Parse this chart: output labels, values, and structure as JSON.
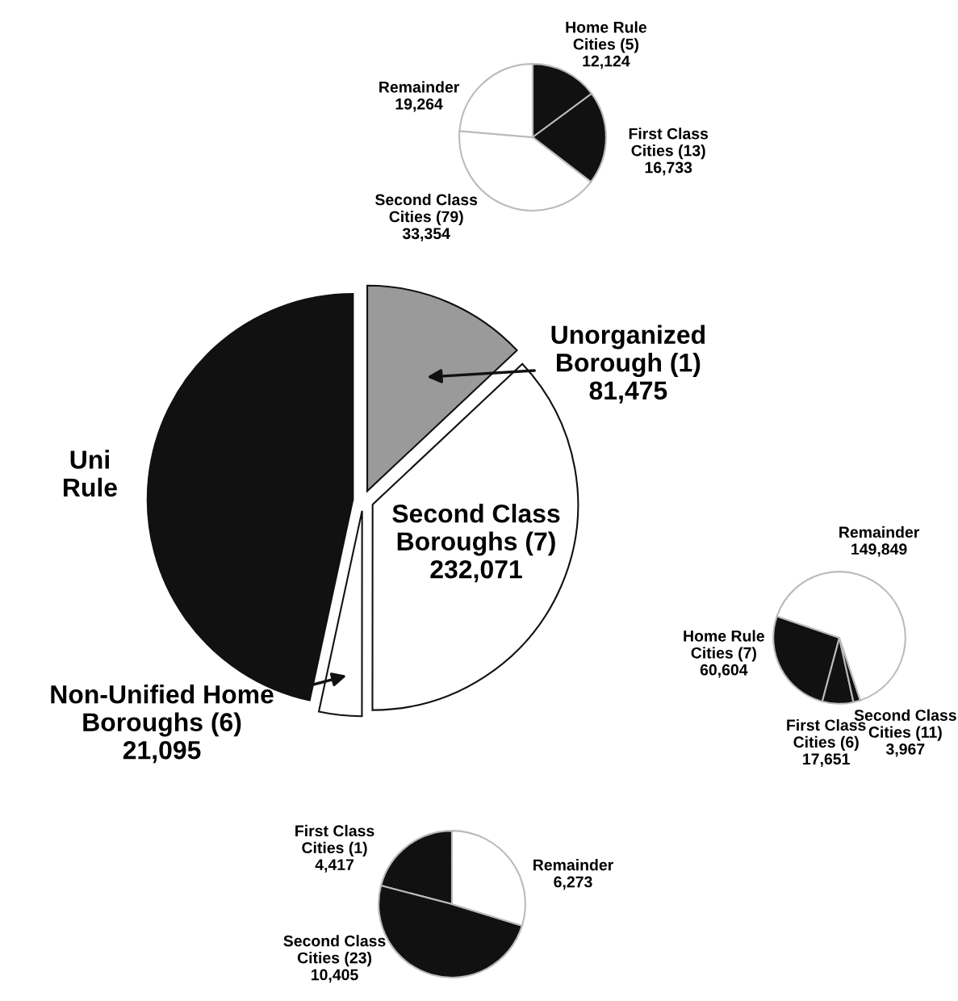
{
  "chart_data": [
    {
      "type": "pie",
      "categories": [
        "Unorganized\nBorough (1)",
        "Second Class\nBoroughs (7)",
        "Non-Unified Home\nBoroughs (6)",
        "Uni\nRule"
      ],
      "values": [
        81475,
        232071,
        21095,
        292291
      ],
      "colors": [
        "#9a9a9a",
        "#ffffff",
        "#ffffff",
        "#111111"
      ],
      "value_labels": [
        "81,475",
        "232,071",
        "21,095",
        null
      ]
    },
    {
      "type": "pie",
      "categories": [
        "Home Rule\nCities (5)",
        "First Class\nCities (13)",
        "Second Class\nCities (79)",
        "Remainder"
      ],
      "values": [
        12124,
        16733,
        33354,
        19264
      ],
      "colors": [
        "#111111",
        "#111111",
        "#ffffff",
        "#ffffff"
      ],
      "value_labels": [
        "12,124",
        "16,733",
        "33,354",
        "19,264"
      ]
    },
    {
      "type": "pie",
      "categories": [
        "Home Rule\nCities (7)",
        "First Class\nCities (6)",
        "Second Class\nCities (11)",
        "Remainder"
      ],
      "values": [
        60604,
        17651,
        3967,
        149849
      ],
      "colors": [
        "#111111",
        "#111111",
        "#111111",
        "#ffffff"
      ],
      "value_labels": [
        "60,604",
        "17,651",
        "3,967",
        "149,849"
      ]
    },
    {
      "type": "pie",
      "categories": [
        "First Class\nCities (1)",
        "Second Class\nCities (23)",
        "Remainder"
      ],
      "values": [
        4417,
        10405,
        6273
      ],
      "colors": [
        "#111111",
        "#111111",
        "#ffffff"
      ],
      "value_labels": [
        "4,417",
        "10,405",
        "6,273"
      ]
    }
  ]
}
